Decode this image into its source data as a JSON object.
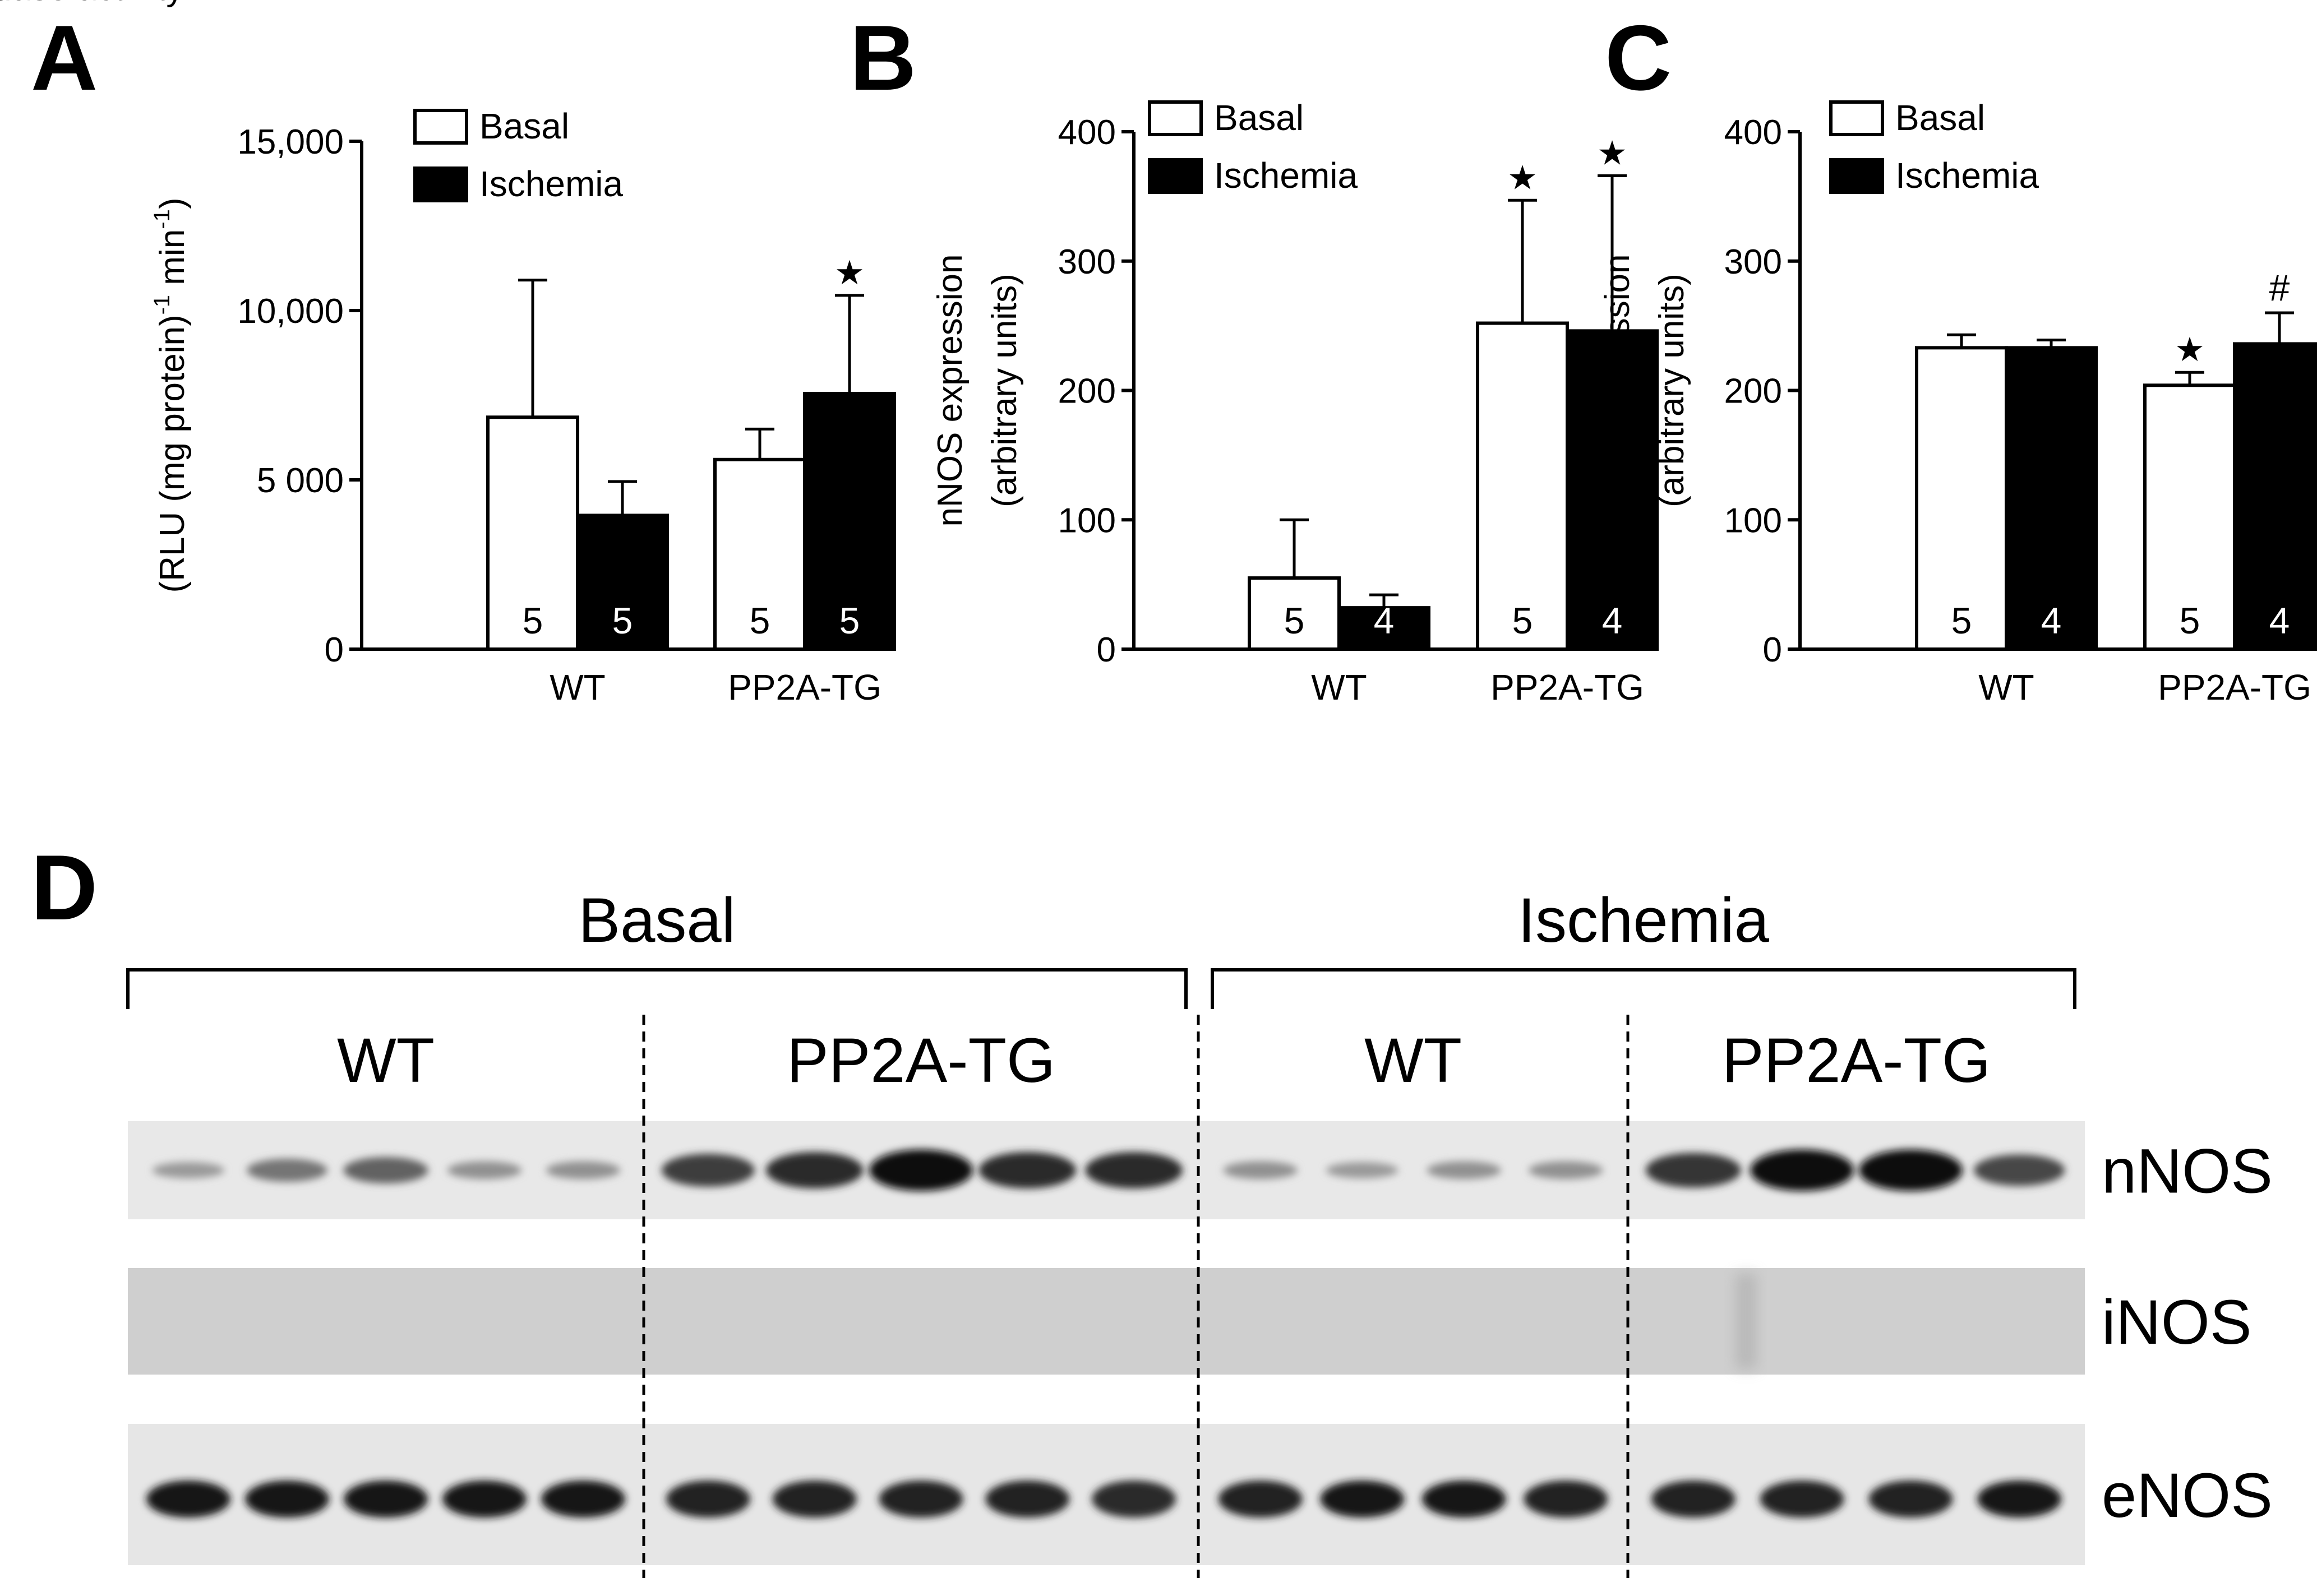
{
  "panels": [
    {
      "letter": "A",
      "ylabel_lines": [
        "NADPH oxidase activity",
        "(RLU (mg protein)",
        "-1",
        " min",
        "-1",
        ")"
      ],
      "chart_data": {
        "type": "bar",
        "categories": [
          "WT",
          "PP2A-TG"
        ],
        "series": [
          {
            "name": "Basal",
            "color": "#ffffff",
            "values": [
              6850,
              5600
            ],
            "errors": [
              4050,
              900
            ],
            "n": [
              "5",
              "5"
            ],
            "marks": [
              "",
              ""
            ]
          },
          {
            "name": "Ischemia",
            "color": "#000000",
            "values": [
              3950,
              7550
            ],
            "errors": [
              1000,
              2900
            ],
            "n": [
              "5",
              "5"
            ],
            "marks": [
              "",
              "★"
            ]
          }
        ],
        "ylim": [
          0,
          15000
        ],
        "yticks": [
          0,
          5000,
          10000,
          15000
        ],
        "ytick_labels": [
          "0",
          "5 000",
          "10,000",
          "15,000"
        ],
        "legend_placement": "top-left"
      }
    },
    {
      "letter": "B",
      "ylabel_lines": [
        "nNOS expression",
        "(arbitrary units)"
      ],
      "chart_data": {
        "type": "bar",
        "categories": [
          "WT",
          "PP2A-TG"
        ],
        "series": [
          {
            "name": "Basal",
            "color": "#ffffff",
            "values": [
              55,
              252
            ],
            "errors": [
              45,
              95
            ],
            "n": [
              "5",
              "5"
            ],
            "marks": [
              "",
              "★"
            ]
          },
          {
            "name": "Ischemia",
            "color": "#000000",
            "values": [
              32,
              246
            ],
            "errors": [
              10,
              120
            ],
            "n": [
              "4",
              "4"
            ],
            "marks": [
              "",
              "★"
            ]
          }
        ],
        "ylim": [
          0,
          400
        ],
        "yticks": [
          0,
          100,
          200,
          300,
          400
        ],
        "ytick_labels": [
          "0",
          "100",
          "200",
          "300",
          "400"
        ],
        "legend_placement": "top-left"
      }
    },
    {
      "letter": "C",
      "ylabel_lines": [
        "eNOS expression",
        "(arbitrary units)"
      ],
      "chart_data": {
        "type": "bar",
        "categories": [
          "WT",
          "PP2A-TG"
        ],
        "series": [
          {
            "name": "Basal",
            "color": "#ffffff",
            "values": [
              233,
              204
            ],
            "errors": [
              10,
              10
            ],
            "n": [
              "5",
              "5"
            ],
            "marks": [
              "",
              "★"
            ]
          },
          {
            "name": "Ischemia",
            "color": "#000000",
            "values": [
              233,
              236
            ],
            "errors": [
              6,
              24
            ],
            "n": [
              "4",
              "4"
            ],
            "marks": [
              "",
              "#"
            ]
          }
        ],
        "ylim": [
          0,
          400
        ],
        "yticks": [
          0,
          100,
          200,
          300,
          400
        ],
        "ytick_labels": [
          "0",
          "100",
          "200",
          "300",
          "400"
        ],
        "legend_placement": "top-left"
      }
    }
  ],
  "blot": {
    "letter": "D",
    "conditions": [
      "Basal",
      "Ischemia"
    ],
    "groups": [
      "WT",
      "PP2A-TG",
      "WT",
      "PP2A-TG"
    ],
    "lanes_per_group": [
      5,
      5,
      4,
      4
    ],
    "rows": [
      {
        "label": "nNOS",
        "intensities": [
          0.25,
          0.45,
          0.55,
          0.3,
          0.3,
          0.75,
          0.85,
          1.0,
          0.85,
          0.85,
          0.3,
          0.25,
          0.3,
          0.3,
          0.8,
          1.0,
          1.0,
          0.7
        ]
      },
      {
        "label": "iNOS",
        "intensities": [
          0,
          0,
          0,
          0,
          0,
          0,
          0,
          0,
          0,
          0,
          0,
          0,
          0,
          0,
          0,
          0,
          0,
          0
        ]
      },
      {
        "label": "eNOS",
        "intensities": [
          0.95,
          0.95,
          0.95,
          0.95,
          0.95,
          0.9,
          0.9,
          0.9,
          0.9,
          0.85,
          0.9,
          0.95,
          0.95,
          0.9,
          0.9,
          0.9,
          0.9,
          0.95
        ]
      }
    ]
  }
}
